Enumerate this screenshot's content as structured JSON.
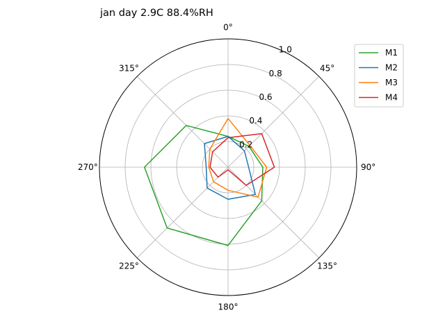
{
  "chart_data": {
    "type": "line",
    "subtype": "polar",
    "title": "jan day 2.9C 88.4%RH",
    "theta_labels": [
      "0°",
      "45°",
      "90°",
      "135°",
      "180°",
      "225°",
      "270°",
      "315°"
    ],
    "r_ticks": [
      0.2,
      0.4,
      0.6,
      0.8,
      1.0
    ],
    "r_tick_labels": [
      "0.2",
      "0.4",
      "0.6",
      "0.8",
      "1.0"
    ],
    "rlim": [
      0,
      1.0
    ],
    "theta_zero": "N",
    "theta_direction": "clockwise",
    "grid": true,
    "legend_position": "upper right",
    "x": [
      0,
      45,
      90,
      135,
      180,
      225,
      270,
      315
    ],
    "series": [
      {
        "name": "M1",
        "color": "#2ca02c",
        "values": [
          0.24,
          0.23,
          0.27,
          0.37,
          0.61,
          0.67,
          0.65,
          0.46
        ]
      },
      {
        "name": "M2",
        "color": "#1f77b4",
        "values": [
          0.24,
          0.18,
          0.16,
          0.3,
          0.25,
          0.23,
          0.17,
          0.26
        ]
      },
      {
        "name": "M3",
        "color": "#ff7f0e",
        "values": [
          0.38,
          0.24,
          0.3,
          0.33,
          0.18,
          0.16,
          0.15,
          0.2
        ]
      },
      {
        "name": "M4",
        "color": "#d62728",
        "values": [
          0.23,
          0.37,
          0.36,
          0.2,
          0.02,
          0.11,
          0.14,
          0.17
        ]
      }
    ]
  }
}
